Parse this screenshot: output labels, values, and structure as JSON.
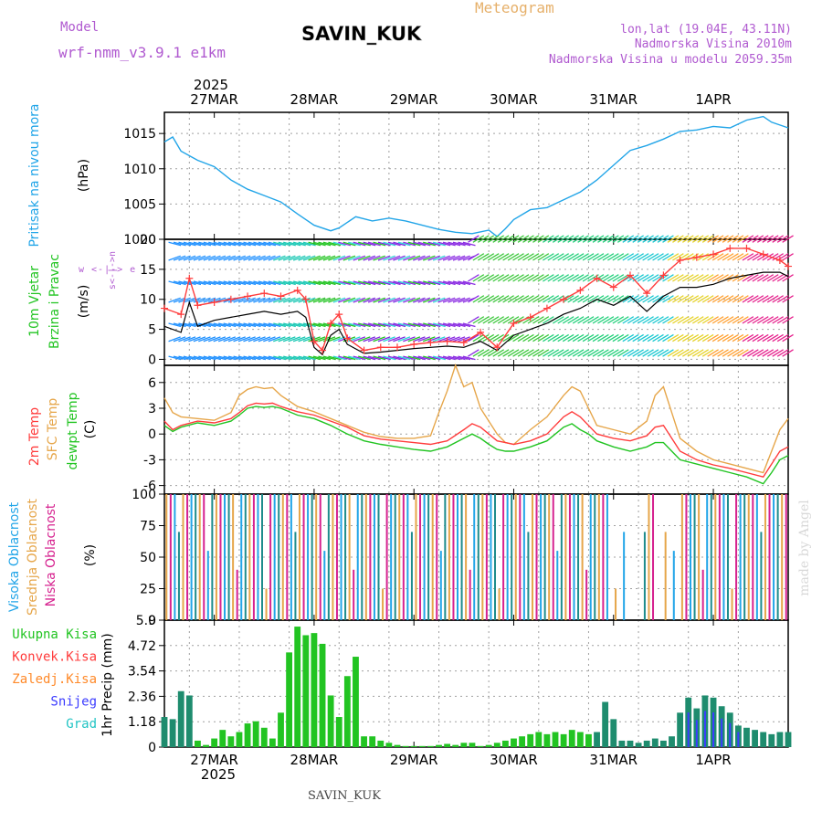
{
  "header": {
    "model_label": "Model",
    "model_name": "wrf-nmm_v3.9.1 e1km",
    "station": "SAVIN_KUK",
    "meteogram_label": "Meteogram",
    "lonlat": "lon,lat (19.04E, 43.11N)",
    "elevation": "Nadmorska Visina 2010m",
    "model_elevation": "Nadmorska Visina u modelu 2059.35m"
  },
  "footer": {
    "station": "SAVIN_KUK",
    "credit": "made by Angel"
  },
  "time_axis": {
    "year": "2025",
    "labels": [
      "27MAR",
      "28MAR",
      "29MAR",
      "30MAR",
      "31MAR",
      "1APR"
    ],
    "range_hours": [
      -12,
      138
    ],
    "day_hours": [
      0,
      24,
      48,
      72,
      96,
      120
    ]
  },
  "chart_data": [
    {
      "type": "line",
      "title": "Pritisak na nivou mora",
      "ylabel": "(hPa)",
      "ylim": [
        1000,
        1018
      ],
      "yticks": [
        "1000",
        "1005",
        "1010",
        "1015"
      ],
      "series": [
        {
          "color": "#22a5e8",
          "x": [
            -12,
            -10,
            -8,
            -4,
            0,
            4,
            8,
            12,
            16,
            20,
            24,
            28,
            30,
            34,
            38,
            42,
            46,
            50,
            54,
            58,
            62,
            66,
            68,
            70,
            72,
            76,
            80,
            84,
            88,
            92,
            96,
            100,
            104,
            108,
            112,
            116,
            120,
            124,
            128,
            132,
            134,
            138
          ],
          "y": [
            1013.8,
            1014.5,
            1012.5,
            1011.2,
            1010.3,
            1008.4,
            1007.1,
            1006.2,
            1005.3,
            1003.6,
            1002.0,
            1001.2,
            1001.6,
            1003.2,
            1002.6,
            1003.0,
            1002.6,
            1002.0,
            1001.4,
            1001.0,
            1000.8,
            1001.3,
            1000.4,
            1001.5,
            1002.8,
            1004.2,
            1004.5,
            1005.6,
            1006.7,
            1008.4,
            1010.5,
            1012.6,
            1013.3,
            1014.2,
            1015.3,
            1015.5,
            1016.0,
            1015.8,
            1016.9,
            1017.4,
            1016.6,
            1015.8
          ]
        }
      ]
    },
    {
      "type": "line",
      "title": "10m Vjetar Brzina i Pravac",
      "ylabel": "(m/s)",
      "direction_label": "w <-|-> e",
      "vertical_label": "s<-|->n",
      "ylim": [
        -1,
        20
      ],
      "yticks": [
        "0",
        "5",
        "10",
        "15",
        "20"
      ],
      "series": [
        {
          "name": "speed",
          "color": "#000000",
          "x": [
            -12,
            -8,
            -6,
            -4,
            0,
            4,
            8,
            12,
            16,
            20,
            22,
            24,
            26,
            28,
            30,
            32,
            36,
            40,
            44,
            48,
            52,
            56,
            60,
            64,
            68,
            72,
            76,
            80,
            84,
            88,
            92,
            96,
            100,
            104,
            108,
            112,
            116,
            120,
            124,
            128,
            132,
            136,
            138
          ],
          "y": [
            5.5,
            4.5,
            9.5,
            5.5,
            6.5,
            7.0,
            7.5,
            8.0,
            7.5,
            8.0,
            7.0,
            2.0,
            0.8,
            4.0,
            5.0,
            2.5,
            1.0,
            1.2,
            1.5,
            1.8,
            2.0,
            2.2,
            2.0,
            3.0,
            1.5,
            4.0,
            5.0,
            6.0,
            7.5,
            8.5,
            10.0,
            9.0,
            10.5,
            8.0,
            10.5,
            12.0,
            12.0,
            12.5,
            13.5,
            14.0,
            14.5,
            14.5,
            13.8
          ]
        },
        {
          "name": "gust",
          "color": "#ff3c3c",
          "x": [
            -12,
            -8,
            -6,
            -4,
            0,
            4,
            8,
            12,
            16,
            20,
            22,
            24,
            26,
            28,
            30,
            32,
            36,
            40,
            44,
            48,
            52,
            56,
            60,
            64,
            68,
            72,
            76,
            80,
            84,
            88,
            92,
            96,
            100,
            104,
            108,
            112,
            116,
            120,
            124,
            128,
            132,
            136,
            138
          ],
          "y": [
            8.5,
            7.5,
            13.5,
            9.0,
            9.5,
            10.0,
            10.5,
            11.0,
            10.5,
            11.5,
            10.0,
            3.0,
            1.5,
            6.0,
            7.5,
            3.5,
            1.5,
            2.0,
            2.0,
            2.5,
            2.8,
            3.0,
            2.8,
            4.5,
            2.0,
            6.0,
            7.0,
            8.5,
            10.0,
            11.5,
            13.5,
            12.0,
            14.0,
            11.0,
            14.0,
            16.5,
            17.0,
            17.5,
            18.5,
            18.5,
            17.5,
            16.5,
            15.5
          ]
        }
      ]
    },
    {
      "type": "line",
      "title": "2m Temp / SFC Temp / dewpt Temp",
      "ylabel": "(C)",
      "ylim": [
        -7,
        8
      ],
      "yticks": [
        "-6",
        "-3",
        "0",
        "3",
        "6"
      ],
      "series": [
        {
          "name": "2m Temp",
          "color": "#ff3c3c",
          "x": [
            -12,
            -10,
            -8,
            -4,
            0,
            4,
            6,
            8,
            10,
            12,
            14,
            16,
            20,
            24,
            28,
            32,
            36,
            40,
            44,
            48,
            52,
            56,
            60,
            62,
            64,
            66,
            68,
            70,
            72,
            76,
            80,
            84,
            86,
            88,
            90,
            92,
            96,
            100,
            104,
            106,
            108,
            110,
            112,
            116,
            120,
            124,
            128,
            132,
            134,
            136,
            138
          ],
          "y": [
            1.5,
            0.5,
            1.0,
            1.5,
            1.3,
            1.8,
            2.5,
            3.3,
            3.6,
            3.5,
            3.6,
            3.2,
            2.6,
            2.2,
            1.5,
            0.8,
            -0.2,
            -0.6,
            -0.8,
            -1.0,
            -1.2,
            -0.8,
            0.5,
            1.2,
            0.8,
            0.0,
            -0.8,
            -1.0,
            -1.2,
            -0.8,
            0.0,
            2.0,
            2.6,
            2.0,
            1.0,
            0.0,
            -0.5,
            -0.8,
            -0.2,
            0.8,
            1.0,
            -0.5,
            -2.0,
            -3.0,
            -3.6,
            -4.0,
            -4.5,
            -5.0,
            -3.5,
            -2.0,
            -1.5
          ]
        },
        {
          "name": "SFC Temp",
          "color": "#e6a64a",
          "x": [
            -12,
            -10,
            -8,
            -4,
            0,
            4,
            6,
            8,
            10,
            12,
            14,
            16,
            20,
            24,
            28,
            32,
            36,
            40,
            44,
            48,
            52,
            54,
            56,
            58,
            60,
            62,
            64,
            66,
            68,
            70,
            72,
            76,
            80,
            84,
            86,
            88,
            90,
            92,
            96,
            100,
            104,
            106,
            108,
            110,
            112,
            116,
            120,
            124,
            128,
            132,
            134,
            136,
            138
          ],
          "y": [
            4.2,
            2.5,
            2.0,
            1.8,
            1.6,
            2.5,
            4.5,
            5.2,
            5.5,
            5.3,
            5.4,
            4.5,
            3.2,
            2.6,
            1.8,
            1.0,
            0.2,
            -0.3,
            -0.5,
            -0.5,
            -0.2,
            2.5,
            5.0,
            8.0,
            5.5,
            6.0,
            3.0,
            1.5,
            0.0,
            -1.0,
            -1.2,
            0.5,
            2.0,
            4.5,
            5.5,
            5.0,
            3.0,
            1.0,
            0.5,
            0.0,
            1.5,
            4.5,
            5.5,
            2.5,
            -0.5,
            -2.0,
            -3.0,
            -3.5,
            -4.0,
            -4.5,
            -2.0,
            0.5,
            1.8
          ]
        },
        {
          "name": "dewpt Temp",
          "color": "#22c422",
          "x": [
            -12,
            -10,
            -8,
            -4,
            0,
            4,
            6,
            8,
            10,
            12,
            14,
            16,
            20,
            24,
            28,
            32,
            36,
            40,
            44,
            48,
            52,
            56,
            60,
            62,
            64,
            66,
            68,
            70,
            72,
            76,
            80,
            84,
            86,
            88,
            90,
            92,
            96,
            100,
            104,
            106,
            108,
            110,
            112,
            116,
            120,
            124,
            128,
            132,
            134,
            136,
            138
          ],
          "y": [
            1.0,
            0.3,
            0.8,
            1.3,
            1.0,
            1.5,
            2.2,
            3.0,
            3.2,
            3.1,
            3.2,
            3.0,
            2.2,
            1.8,
            1.0,
            0.0,
            -0.8,
            -1.2,
            -1.5,
            -1.8,
            -2.0,
            -1.5,
            -0.5,
            0.0,
            -0.5,
            -1.2,
            -1.8,
            -2.0,
            -2.0,
            -1.5,
            -0.8,
            0.8,
            1.2,
            0.5,
            0.0,
            -0.8,
            -1.5,
            -2.0,
            -1.5,
            -1.0,
            -1.0,
            -2.0,
            -3.0,
            -3.5,
            -4.0,
            -4.5,
            -5.0,
            -5.8,
            -4.5,
            -3.0,
            -2.5
          ]
        }
      ]
    },
    {
      "type": "bar",
      "title": "Visoka Oblacnost / Srednja Oblacnost / Niska Oblacnost",
      "ylabel": "(%)",
      "ylim": [
        0,
        100
      ],
      "yticks": [
        "0",
        "25",
        "50",
        "75",
        "100"
      ],
      "series": [
        {
          "name": "Visoka Oblacnost",
          "color": "#22a5e8"
        },
        {
          "name": "Srednja Oblacnost",
          "color": "#e6a64a"
        },
        {
          "name": "Niska Oblacnost",
          "color": "#d6228f"
        }
      ]
    },
    {
      "type": "bar",
      "title": "1hr Precip",
      "ylabel": "(mm)",
      "ylim": [
        0,
        5.9
      ],
      "yticks": [
        "0",
        "1.18",
        "2.36",
        "3.54",
        "4.72",
        "5.9"
      ],
      "legend": [
        {
          "name": "Ukupna Kisa",
          "color": "#22c422"
        },
        {
          "name": "Konvek.Kisa",
          "color": "#ff3c3c"
        },
        {
          "name": "Zaledj.Kisa",
          "color": "#ff8a2a"
        },
        {
          "name": "Snijeg",
          "color": "#3c3cff"
        },
        {
          "name": "Grad",
          "color": "#22c4c4"
        }
      ],
      "x": [
        -12,
        -10,
        -8,
        -6,
        -4,
        -2,
        0,
        2,
        4,
        6,
        8,
        10,
        12,
        14,
        16,
        18,
        20,
        22,
        24,
        26,
        28,
        30,
        32,
        34,
        36,
        38,
        40,
        42,
        44,
        46,
        48,
        50,
        52,
        54,
        56,
        58,
        60,
        62,
        64,
        66,
        68,
        70,
        72,
        74,
        76,
        78,
        80,
        82,
        84,
        86,
        88,
        90,
        92,
        94,
        96,
        98,
        100,
        102,
        104,
        106,
        108,
        110,
        112,
        114,
        116,
        118,
        120,
        122,
        124,
        126,
        128,
        130,
        132,
        134,
        136,
        138
      ],
      "values": [
        1.4,
        1.3,
        2.6,
        2.4,
        0.3,
        0.1,
        0.4,
        0.8,
        0.5,
        0.7,
        1.1,
        1.2,
        0.9,
        0.4,
        1.6,
        4.4,
        5.6,
        5.2,
        5.3,
        4.8,
        2.4,
        1.4,
        3.3,
        4.2,
        0.5,
        0.5,
        0.3,
        0.2,
        0.1,
        0.05,
        0.05,
        0.05,
        0.05,
        0.1,
        0.15,
        0.1,
        0.2,
        0.2,
        0.05,
        0.1,
        0.2,
        0.3,
        0.4,
        0.5,
        0.6,
        0.7,
        0.6,
        0.7,
        0.6,
        0.8,
        0.7,
        0.6,
        0.7,
        2.1,
        1.3,
        0.3,
        0.3,
        0.2,
        0.3,
        0.4,
        0.3,
        0.5,
        1.6,
        2.3,
        1.8,
        2.4,
        2.3,
        1.9,
        1.6,
        1.0,
        0.9,
        0.8,
        0.7,
        0.6,
        0.7,
        0.7
      ]
    }
  ]
}
